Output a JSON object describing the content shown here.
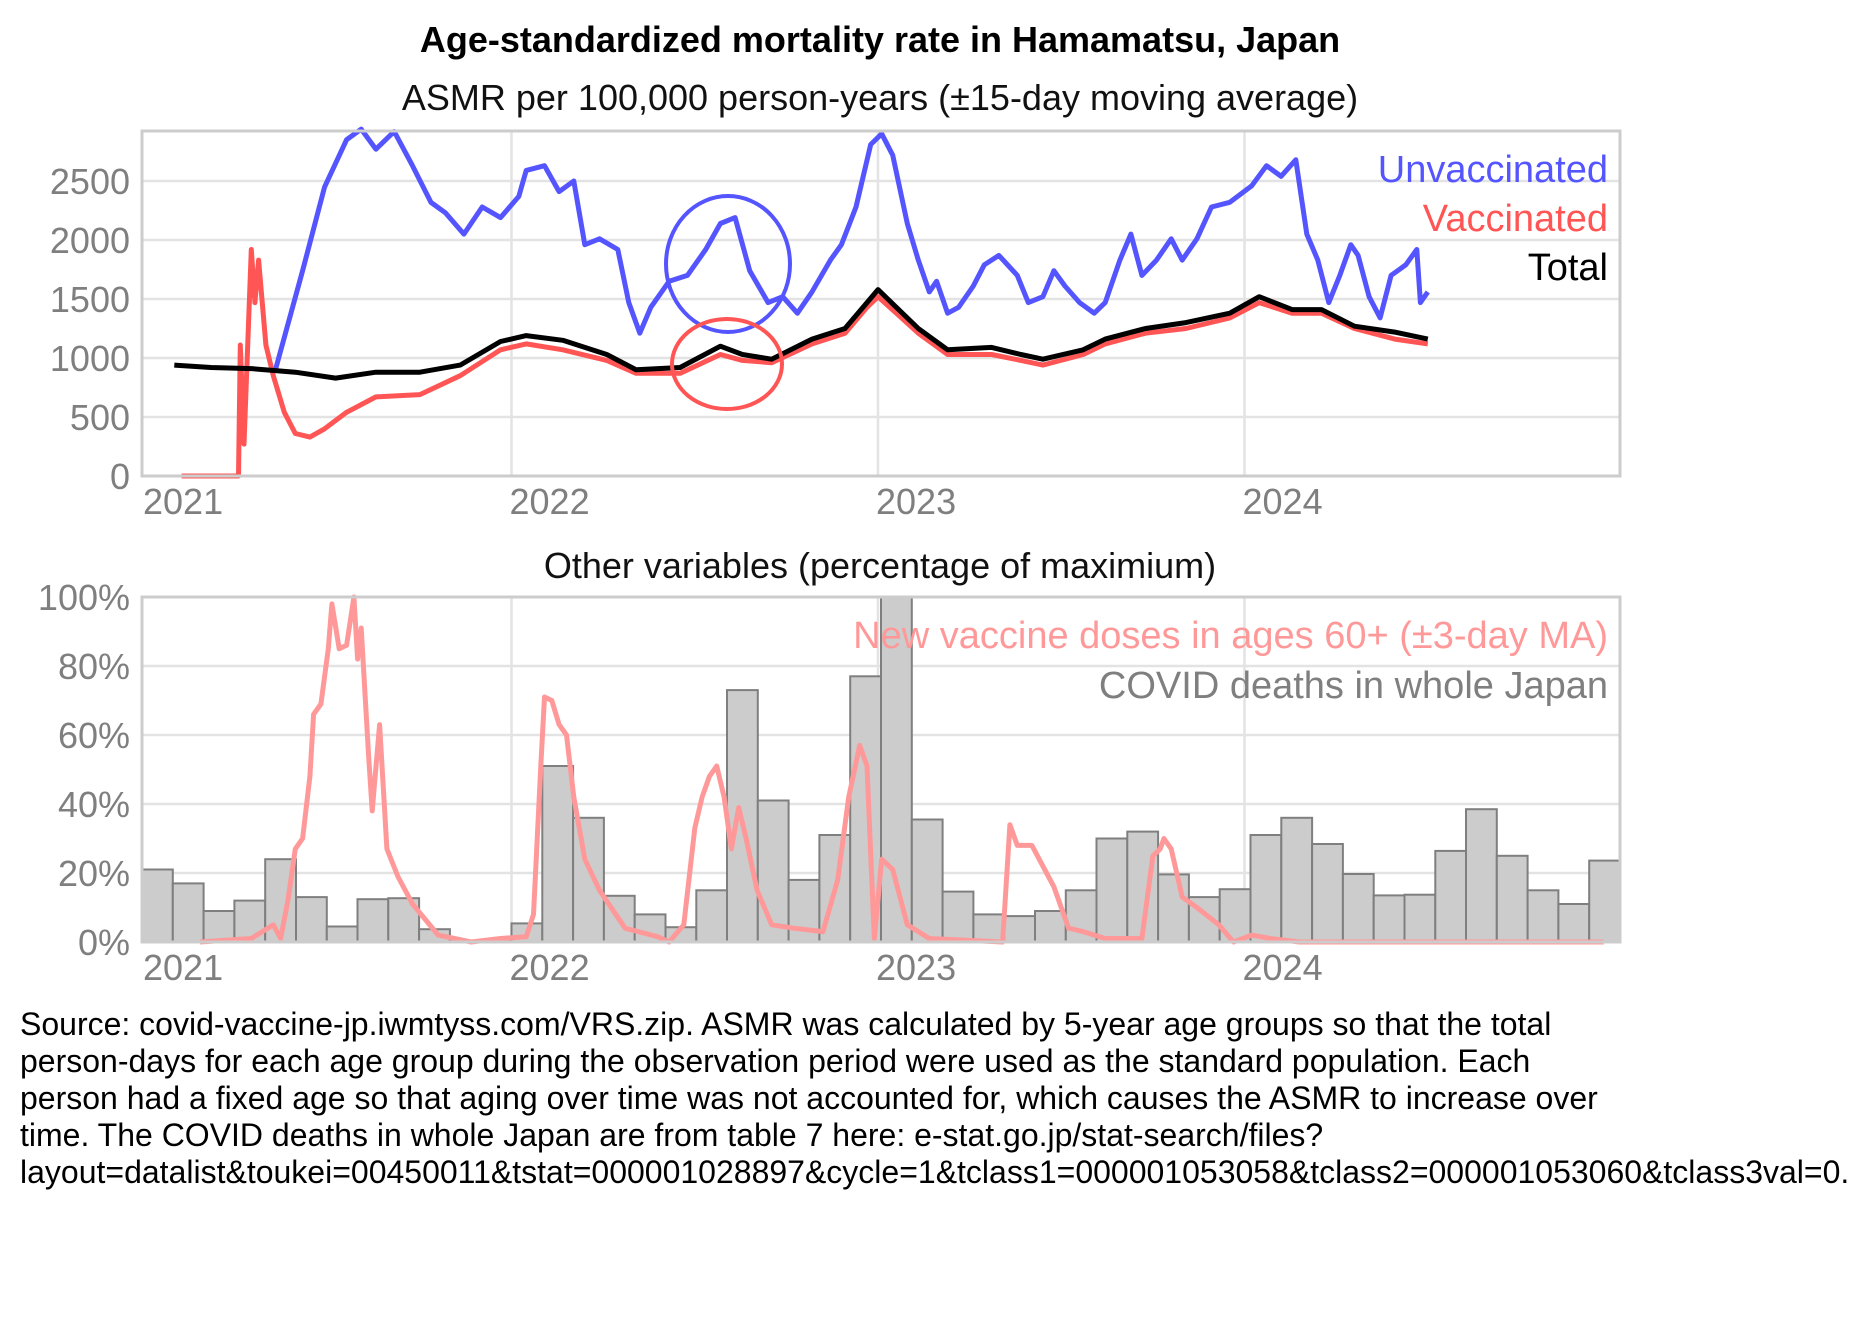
{
  "chart_data": [
    {
      "type": "line",
      "title": "Age-standardized mortality rate in Hamamatsu, Japan",
      "subtitle": "ASMR per 100,000 person-years (±15-day moving average)",
      "xlabel": "",
      "ylabel": "",
      "xlim": [
        2021.0,
        2025.03
      ],
      "ylim": [
        0,
        2924
      ],
      "x_ticks": [
        2021,
        2022,
        2023,
        2024
      ],
      "x_tick_labels": [
        "2021",
        "2022",
        "2023",
        "2024"
      ],
      "y_ticks": [
        0,
        500,
        1000,
        1500,
        2000,
        2500
      ],
      "y_tick_labels": [
        "0",
        "500",
        "1000",
        "1500",
        "2000",
        "2500"
      ],
      "grid": true,
      "legend_position": "top-right",
      "annotations": [
        {
          "shape": "ellipse",
          "color": "#5555ff",
          "center": [
            2022.6,
            1790
          ],
          "note": "highlights Unvaccinated summer 2022 peak"
        },
        {
          "shape": "ellipse",
          "color": "#ff5555",
          "center": [
            2022.6,
            950
          ],
          "note": "highlights Vaccinated summer 2022 bump"
        }
      ],
      "series": [
        {
          "name": "Unvaccinated",
          "color": "#5555ff",
          "x": [
            2021.355,
            2021.43,
            2021.49,
            2021.55,
            2021.59,
            2021.63,
            2021.68,
            2021.73,
            2021.78,
            2021.82,
            2021.87,
            2021.92,
            2021.97,
            2022.02,
            2022.04,
            2022.09,
            2022.13,
            2022.17,
            2022.2,
            2022.24,
            2022.29,
            2022.32,
            2022.35,
            2022.38,
            2022.43,
            2022.48,
            2022.53,
            2022.57,
            2022.61,
            2022.65,
            2022.7,
            2022.74,
            2022.78,
            2022.82,
            2022.87,
            2022.9,
            2022.94,
            2022.98,
            2023.01,
            2023.04,
            2023.08,
            2023.11,
            2023.14,
            2023.16,
            2023.19,
            2023.22,
            2023.26,
            2023.29,
            2023.33,
            2023.38,
            2023.41,
            2023.45,
            2023.48,
            2023.51,
            2023.55,
            2023.59,
            2023.62,
            2023.66,
            2023.69,
            2023.72,
            2023.76,
            2023.8,
            2023.83,
            2023.87,
            2023.91,
            2023.96,
            2024.02,
            2024.06,
            2024.1,
            2024.14,
            2024.17,
            2024.2,
            2024.23,
            2024.26,
            2024.29,
            2024.31,
            2024.34,
            2024.37,
            2024.4,
            2024.44,
            2024.47,
            2024.48,
            2024.5
          ],
          "y": [
            890,
            1740,
            2450,
            2850,
            2940,
            2770,
            2920,
            2630,
            2320,
            2230,
            2050,
            2280,
            2190,
            2370,
            2590,
            2630,
            2410,
            2500,
            1960,
            2010,
            1920,
            1470,
            1210,
            1430,
            1650,
            1700,
            1920,
            2140,
            2190,
            1740,
            1470,
            1520,
            1380,
            1560,
            1830,
            1960,
            2280,
            2810,
            2900,
            2720,
            2140,
            1830,
            1560,
            1650,
            1380,
            1430,
            1610,
            1790,
            1870,
            1700,
            1470,
            1520,
            1740,
            1610,
            1470,
            1380,
            1470,
            1830,
            2050,
            1700,
            1830,
            2010,
            1830,
            2010,
            2280,
            2320,
            2460,
            2630,
            2540,
            2680,
            2050,
            1830,
            1470,
            1700,
            1960,
            1870,
            1520,
            1340,
            1700,
            1790,
            1920,
            1470,
            1560
          ]
        },
        {
          "name": "Vaccinated",
          "color": "#ff5555",
          "x": [
            2021.1,
            2021.255,
            2021.26,
            2021.27,
            2021.29,
            2021.3,
            2021.31,
            2021.33,
            2021.35,
            2021.38,
            2021.41,
            2021.45,
            2021.49,
            2021.55,
            2021.63,
            2021.75,
            2021.86,
            2021.97,
            2022.04,
            2022.14,
            2022.26,
            2022.34,
            2022.46,
            2022.57,
            2022.63,
            2022.71,
            2022.82,
            2022.91,
            2022.97,
            2023.0,
            2023.05,
            2023.11,
            2023.19,
            2023.31,
            2023.39,
            2023.45,
            2023.56,
            2023.62,
            2023.73,
            2023.84,
            2023.96,
            2024.04,
            2024.13,
            2024.21,
            2024.3,
            2024.41,
            2024.5
          ],
          "y": [
            0,
            0,
            1110,
            270,
            1920,
            1470,
            1830,
            1110,
            850,
            540,
            360,
            330,
            400,
            540,
            670,
            690,
            850,
            1070,
            1120,
            1070,
            980,
            870,
            870,
            1030,
            980,
            960,
            1120,
            1210,
            1430,
            1520,
            1380,
            1210,
            1030,
            1030,
            980,
            940,
            1030,
            1120,
            1210,
            1250,
            1340,
            1470,
            1380,
            1380,
            1250,
            1160,
            1120
          ]
        },
        {
          "name": "Total",
          "color": "#000000",
          "x": [
            2021.08,
            2021.18,
            2021.29,
            2021.41,
            2021.52,
            2021.63,
            2021.75,
            2021.86,
            2021.97,
            2022.04,
            2022.14,
            2022.26,
            2022.34,
            2022.46,
            2022.57,
            2022.63,
            2022.71,
            2022.82,
            2022.91,
            2022.97,
            2023.0,
            2023.05,
            2023.11,
            2023.19,
            2023.31,
            2023.39,
            2023.45,
            2023.56,
            2023.62,
            2023.73,
            2023.84,
            2023.96,
            2024.04,
            2024.13,
            2024.21,
            2024.3,
            2024.41,
            2024.5
          ],
          "y": [
            940,
            920,
            910,
            880,
            830,
            880,
            880,
            940,
            1140,
            1190,
            1150,
            1030,
            900,
            920,
            1100,
            1030,
            990,
            1160,
            1250,
            1470,
            1580,
            1430,
            1250,
            1070,
            1090,
            1030,
            990,
            1070,
            1160,
            1250,
            1300,
            1380,
            1520,
            1410,
            1410,
            1270,
            1220,
            1160
          ]
        }
      ]
    },
    {
      "type": "bar",
      "title": "Other variables (percentage of maximium)",
      "xlabel": "",
      "ylabel": "",
      "xlim": [
        2021.0,
        2025.03
      ],
      "ylim": [
        0,
        100
      ],
      "x_ticks": [
        2021,
        2022,
        2023,
        2024
      ],
      "x_tick_labels": [
        "2021",
        "2022",
        "2023",
        "2024"
      ],
      "y_ticks": [
        0,
        20,
        40,
        60,
        80,
        100
      ],
      "y_tick_labels": [
        "0%",
        "20%",
        "40%",
        "60%",
        "80%",
        "100%"
      ],
      "grid": true,
      "legend_position": "top-right",
      "categories": [
        "2021-01",
        "2021-02",
        "2021-03",
        "2021-04",
        "2021-05",
        "2021-06",
        "2021-07",
        "2021-08",
        "2021-09",
        "2021-10",
        "2021-11",
        "2021-12",
        "2022-01",
        "2022-02",
        "2022-03",
        "2022-04",
        "2022-05",
        "2022-06",
        "2022-07",
        "2022-08",
        "2022-09",
        "2022-10",
        "2022-11",
        "2022-12",
        "2023-01",
        "2023-02",
        "2023-03",
        "2023-04",
        "2023-05",
        "2023-06",
        "2023-07",
        "2023-08",
        "2023-09",
        "2023-10",
        "2023-11",
        "2023-12",
        "2024-01",
        "2024-02",
        "2024-03",
        "2024-04",
        "2024-05",
        "2024-06",
        "2024-07",
        "2024-08",
        "2024-09",
        "2024-10",
        "2024-11",
        "2024-12"
      ],
      "series": [
        {
          "name": "COVID deaths in whole Japan",
          "type": "bar",
          "color": "#cccccc",
          "values": [
            21,
            17,
            9,
            12,
            24,
            13,
            4.5,
            12.4,
            12.7,
            3.7,
            0.4,
            0.3,
            5.4,
            51,
            36,
            13.4,
            8,
            4.3,
            15,
            73,
            41,
            18,
            31,
            77,
            100,
            35.5,
            14.6,
            8,
            7.5,
            9,
            15,
            30,
            32,
            19.6,
            13,
            15.3,
            31,
            36,
            28.4,
            19.7,
            13.5,
            13.7,
            26.4,
            38.5,
            25,
            15,
            11,
            23.6
          ]
        },
        {
          "name": "New vaccine doses in ages 60+ (±3-day MA)",
          "type": "line",
          "color": "#ff9999",
          "x": [
            2021.15,
            2021.29,
            2021.35,
            2021.37,
            2021.39,
            2021.41,
            2021.43,
            2021.45,
            2021.46,
            2021.48,
            2021.5,
            2021.51,
            2021.53,
            2021.55,
            2021.57,
            2021.58,
            2021.59,
            2021.61,
            2021.62,
            2021.64,
            2021.66,
            2021.69,
            2021.73,
            2021.8,
            2021.89,
            2021.97,
            2022.04,
            2022.06,
            2022.08,
            2022.09,
            2022.11,
            2022.13,
            2022.15,
            2022.17,
            2022.2,
            2022.24,
            2022.31,
            2022.4,
            2022.43,
            2022.47,
            2022.5,
            2022.52,
            2022.54,
            2022.56,
            2022.58,
            2022.6,
            2022.62,
            2022.64,
            2022.67,
            2022.71,
            2022.77,
            2022.85,
            2022.89,
            2022.92,
            2022.95,
            2022.97,
            2022.99,
            2023.01,
            2023.04,
            2023.08,
            2023.14,
            2023.34,
            2023.36,
            2023.38,
            2023.42,
            2023.48,
            2023.52,
            2023.56,
            2023.62,
            2023.72,
            2023.75,
            2023.77,
            2023.78,
            2023.8,
            2023.83,
            2023.87,
            2023.93,
            2023.97,
            2024.02,
            2024.07,
            2024.15,
            2024.98
          ],
          "y": [
            0,
            1,
            5,
            1,
            12,
            27,
            30,
            48,
            66,
            69,
            85,
            98,
            85,
            86,
            100,
            82,
            91,
            54,
            38,
            63,
            27,
            19,
            11,
            2,
            0,
            1,
            1.5,
            8,
            51,
            71,
            70,
            63,
            60,
            42,
            24,
            15,
            4,
            1.5,
            0,
            5,
            33,
            42,
            48,
            51,
            42,
            27,
            39,
            30,
            15,
            5,
            4,
            3,
            18,
            42,
            57,
            51,
            1,
            24,
            21,
            5,
            1,
            0,
            34,
            28,
            28,
            16,
            4,
            3,
            1,
            1,
            25,
            27,
            30,
            27,
            13,
            10,
            5,
            0,
            2,
            1,
            0,
            0
          ]
        }
      ]
    }
  ],
  "labels": {
    "title": "Age-standardized mortality rate in Hamamatsu, Japan",
    "subtitle": "ASMR per 100,000 person-years (±15-day moving average)",
    "panel2_title": "Other variables (percentage of maximium)",
    "legend_top": [
      "Unvaccinated",
      "Vaccinated",
      "Total"
    ],
    "legend_bottom": [
      "New vaccine doses in ages 60+ (±3-day MA)",
      "COVID deaths in whole Japan"
    ]
  },
  "footnote": "Source: covid-vaccine-jp.iwmtyss.com/VRS.zip. ASMR was calculated by 5-year age groups so that the total person-days for each age group during the observation period were used as the standard population. Each person had a fixed age so that aging over time was not accounted for, which causes the ASMR to increase over time. The COVID deaths in whole Japan are from table 7 here: e-stat.go.jp/stat-search/files?layout=datalist&toukei=00450011&tstat=000001028897&cycle=1&tclass1=000001053058&tclass2=000001053060&tclass3val=0."
}
